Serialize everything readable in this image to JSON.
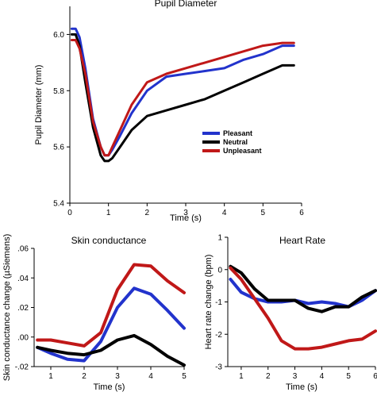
{
  "colors": {
    "pleasant": "#2233cc",
    "neutral": "#000000",
    "unpleasant": "#c01818"
  },
  "chart_data": [
    {
      "type": "line",
      "title": "Pupil Diameter",
      "xlabel": "Time (s)",
      "ylabel": "Pupil Diameter (mm)",
      "xlim": [
        0,
        6
      ],
      "ylim": [
        5.4,
        6.1
      ],
      "xticks": [
        "0",
        "1",
        "2",
        "3",
        "4",
        "5",
        "6"
      ],
      "yticks": [
        "5.4",
        "5.6",
        "5.8",
        "6.0"
      ],
      "ytick_values": [
        5.4,
        5.6,
        5.8,
        6.0
      ],
      "legend_position": "right-center",
      "series": [
        {
          "name": "Pleasant",
          "color_key": "pleasant",
          "x": [
            0.05,
            0.15,
            0.25,
            0.4,
            0.6,
            0.8,
            0.9,
            1.0,
            1.1,
            1.3,
            1.6,
            2.0,
            2.5,
            3.0,
            3.5,
            4.0,
            4.5,
            5.0,
            5.5,
            5.8
          ],
          "y": [
            6.02,
            6.02,
            5.99,
            5.88,
            5.7,
            5.6,
            5.57,
            5.57,
            5.59,
            5.64,
            5.72,
            5.8,
            5.85,
            5.86,
            5.87,
            5.88,
            5.91,
            5.93,
            5.96,
            5.96
          ]
        },
        {
          "name": "Neutral",
          "color_key": "neutral",
          "x": [
            0.05,
            0.15,
            0.25,
            0.4,
            0.6,
            0.8,
            0.9,
            1.0,
            1.1,
            1.3,
            1.6,
            2.0,
            2.5,
            3.0,
            3.5,
            4.0,
            4.5,
            5.0,
            5.5,
            5.8
          ],
          "y": [
            6.0,
            6.0,
            5.96,
            5.83,
            5.67,
            5.57,
            5.55,
            5.55,
            5.56,
            5.6,
            5.66,
            5.71,
            5.73,
            5.75,
            5.77,
            5.8,
            5.83,
            5.86,
            5.89,
            5.89
          ]
        },
        {
          "name": "Unpleasant",
          "color_key": "unpleasant",
          "x": [
            0.05,
            0.15,
            0.25,
            0.4,
            0.6,
            0.8,
            0.9,
            1.0,
            1.1,
            1.3,
            1.6,
            2.0,
            2.5,
            3.0,
            3.5,
            4.0,
            4.5,
            5.0,
            5.5,
            5.8
          ],
          "y": [
            5.98,
            5.98,
            5.95,
            5.86,
            5.69,
            5.6,
            5.57,
            5.57,
            5.6,
            5.66,
            5.75,
            5.83,
            5.86,
            5.88,
            5.9,
            5.92,
            5.94,
            5.96,
            5.97,
            5.97
          ]
        }
      ]
    },
    {
      "type": "line",
      "title": "Skin conductance",
      "xlabel": "Time (s)",
      "ylabel": "Skin conductance change (µSiemens)",
      "xlim": [
        0.5,
        5
      ],
      "ylim": [
        -0.02,
        0.06
      ],
      "xticks": [
        "1",
        "2",
        "3",
        "4",
        "5"
      ],
      "xtick_values": [
        1,
        2,
        3,
        4,
        5
      ],
      "yticks": [
        "-.02",
        ".00",
        ".02",
        ".04",
        ".06"
      ],
      "ytick_values": [
        -0.02,
        0.0,
        0.02,
        0.04,
        0.06
      ],
      "series": [
        {
          "color_key": "pleasant",
          "x": [
            0.6,
            1.0,
            1.5,
            2.0,
            2.5,
            3.0,
            3.5,
            4.0,
            4.5,
            5.0
          ],
          "y": [
            -0.007,
            -0.011,
            -0.015,
            -0.016,
            -0.003,
            0.02,
            0.033,
            0.029,
            0.018,
            0.006
          ]
        },
        {
          "color_key": "neutral",
          "x": [
            0.6,
            1.0,
            1.5,
            2.0,
            2.5,
            3.0,
            3.5,
            4.0,
            4.5,
            5.0
          ],
          "y": [
            -0.007,
            -0.009,
            -0.011,
            -0.012,
            -0.009,
            -0.002,
            0.001,
            -0.005,
            -0.013,
            -0.019
          ]
        },
        {
          "color_key": "unpleasant",
          "x": [
            0.6,
            1.0,
            1.5,
            2.0,
            2.5,
            3.0,
            3.5,
            4.0,
            4.5,
            5.0
          ],
          "y": [
            -0.002,
            -0.002,
            -0.004,
            -0.006,
            0.003,
            0.032,
            0.049,
            0.048,
            0.038,
            0.03
          ]
        }
      ]
    },
    {
      "type": "line",
      "title": "Heart Rate",
      "xlabel": "Time (s)",
      "ylabel": "Heart rate change (bpm)",
      "xlim": [
        0.5,
        6
      ],
      "ylim": [
        -3,
        1
      ],
      "xticks": [
        "1",
        "2",
        "3",
        "4",
        "5",
        "6"
      ],
      "xtick_values": [
        1,
        2,
        3,
        4,
        5,
        6
      ],
      "yticks": [
        "-3",
        "-2",
        "-1",
        "0",
        "1"
      ],
      "ytick_values": [
        -3,
        -2,
        -1,
        0,
        1
      ],
      "series": [
        {
          "color_key": "pleasant",
          "x": [
            0.6,
            1.0,
            1.5,
            2.0,
            2.5,
            3.0,
            3.5,
            4.0,
            4.5,
            5.0,
            5.5,
            6.0
          ],
          "y": [
            -0.3,
            -0.7,
            -0.9,
            -1.0,
            -1.0,
            -0.95,
            -1.05,
            -1.0,
            -1.05,
            -1.15,
            -0.95,
            -0.65
          ]
        },
        {
          "color_key": "neutral",
          "x": [
            0.6,
            1.0,
            1.5,
            2.0,
            2.5,
            3.0,
            3.5,
            4.0,
            4.5,
            5.0,
            5.5,
            6.0
          ],
          "y": [
            0.1,
            -0.1,
            -0.6,
            -0.95,
            -0.95,
            -0.95,
            -1.2,
            -1.3,
            -1.15,
            -1.15,
            -0.85,
            -0.65
          ]
        },
        {
          "color_key": "unpleasant",
          "x": [
            0.6,
            1.0,
            1.5,
            2.0,
            2.5,
            3.0,
            3.5,
            4.0,
            4.5,
            5.0,
            5.5,
            6.0
          ],
          "y": [
            0.05,
            -0.3,
            -0.9,
            -1.5,
            -2.2,
            -2.45,
            -2.45,
            -2.4,
            -2.3,
            -2.2,
            -2.15,
            -1.9
          ]
        }
      ]
    }
  ]
}
